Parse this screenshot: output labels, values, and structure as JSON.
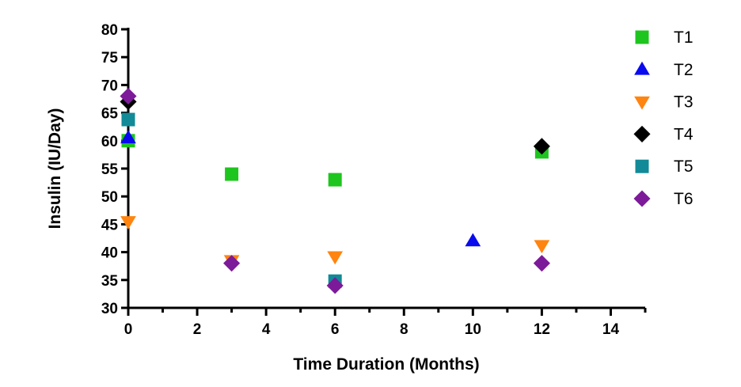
{
  "chart_data": {
    "type": "scatter",
    "title": "",
    "xlabel": "Time Duration (Months)",
    "ylabel": "Insulin (IU/Day)",
    "xlim": [
      0,
      15
    ],
    "ylim": [
      30,
      80
    ],
    "xticks": [
      0,
      2,
      4,
      6,
      8,
      10,
      12,
      14
    ],
    "yticks": [
      30,
      35,
      40,
      45,
      50,
      55,
      60,
      65,
      70,
      75,
      80
    ],
    "grid": false,
    "legend_position": "right",
    "series": [
      {
        "name": "T1",
        "marker": "square",
        "color": "#1ec51e",
        "points": [
          {
            "x": 0,
            "y": 60
          },
          {
            "x": 3,
            "y": 54
          },
          {
            "x": 6,
            "y": 53
          },
          {
            "x": 12,
            "y": 58
          }
        ]
      },
      {
        "name": "T2",
        "marker": "triangle-up",
        "color": "#0a0aef",
        "points": [
          {
            "x": 0,
            "y": 60.5
          },
          {
            "x": 10,
            "y": 42
          }
        ]
      },
      {
        "name": "T3",
        "marker": "triangle-down",
        "color": "#ff8410",
        "points": [
          {
            "x": 0,
            "y": 45.5
          },
          {
            "x": 3,
            "y": 38.5
          },
          {
            "x": 6,
            "y": 39.2
          },
          {
            "x": 12,
            "y": 41.2
          }
        ]
      },
      {
        "name": "T4",
        "marker": "diamond",
        "color": "#000000",
        "points": [
          {
            "x": 0,
            "y": 67
          },
          {
            "x": 12,
            "y": 59
          }
        ]
      },
      {
        "name": "T5",
        "marker": "square",
        "color": "#128a97",
        "points": [
          {
            "x": 0,
            "y": 63.8
          },
          {
            "x": 6,
            "y": 34.8
          }
        ]
      },
      {
        "name": "T6",
        "marker": "diamond",
        "color": "#7d1a9a",
        "points": [
          {
            "x": 0,
            "y": 68
          },
          {
            "x": 3,
            "y": 38
          },
          {
            "x": 6,
            "y": 34
          },
          {
            "x": 12,
            "y": 38
          }
        ]
      }
    ]
  }
}
